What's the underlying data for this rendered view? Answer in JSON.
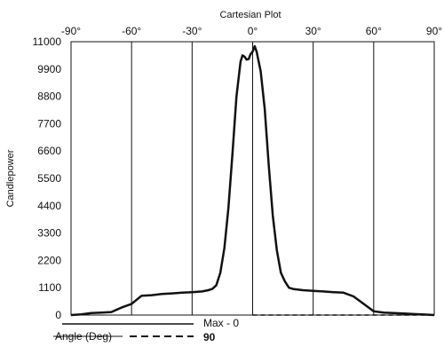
{
  "chart_data": {
    "type": "line",
    "title": "Cartesian Plot",
    "xlabel": "Angle (Deg)",
    "ylabel": "Candlepower",
    "xlim": [
      -90,
      90
    ],
    "ylim": [
      0,
      11000
    ],
    "x_ticks": [
      "-90°",
      "-60°",
      "-30°",
      "0°",
      "30°",
      "60°",
      "90°"
    ],
    "x_tick_values": [
      -90,
      -60,
      -30,
      0,
      30,
      60,
      90
    ],
    "y_ticks": [
      "0",
      "1100",
      "2200",
      "3300",
      "4400",
      "5500",
      "6600",
      "7700",
      "8800",
      "9900",
      "11000"
    ],
    "y_tick_values": [
      0,
      1100,
      2200,
      3300,
      4400,
      5500,
      6600,
      7700,
      8800,
      9900,
      11000
    ],
    "grid": "vertical-major",
    "series": [
      {
        "name": "Max - 0",
        "style": "solid",
        "x": [
          -90,
          -85,
          -80,
          -75,
          -70,
          -65,
          -60,
          -55,
          -50,
          -45,
          -40,
          -35,
          -30,
          -25,
          -22,
          -20,
          -18,
          -16,
          -14,
          -12,
          -10,
          -8,
          -6,
          -5,
          -4,
          -3,
          -2,
          -1,
          0,
          1,
          2,
          3,
          4,
          6,
          8,
          10,
          12,
          14,
          16,
          18,
          20,
          25,
          30,
          35,
          40,
          45,
          50,
          55,
          60,
          65,
          70,
          75,
          80,
          85,
          90
        ],
        "y": [
          0,
          30,
          80,
          100,
          120,
          300,
          450,
          780,
          800,
          850,
          870,
          900,
          920,
          950,
          1000,
          1050,
          1200,
          1700,
          2700,
          4300,
          6500,
          8800,
          10200,
          10450,
          10400,
          10280,
          10300,
          10500,
          10600,
          10820,
          10600,
          10200,
          9800,
          8300,
          6000,
          4000,
          2600,
          1700,
          1350,
          1100,
          1050,
          1000,
          970,
          950,
          920,
          900,
          750,
          450,
          150,
          100,
          80,
          60,
          40,
          20,
          0
        ]
      },
      {
        "name": "90",
        "style": "dashed",
        "x": [
          0,
          90
        ],
        "y": [
          0,
          0
        ]
      }
    ],
    "legend": {
      "position": "bottom",
      "entries": [
        {
          "label": "Max - 0",
          "style": "solid"
        },
        {
          "label": "90",
          "style": "dashed"
        }
      ]
    }
  }
}
